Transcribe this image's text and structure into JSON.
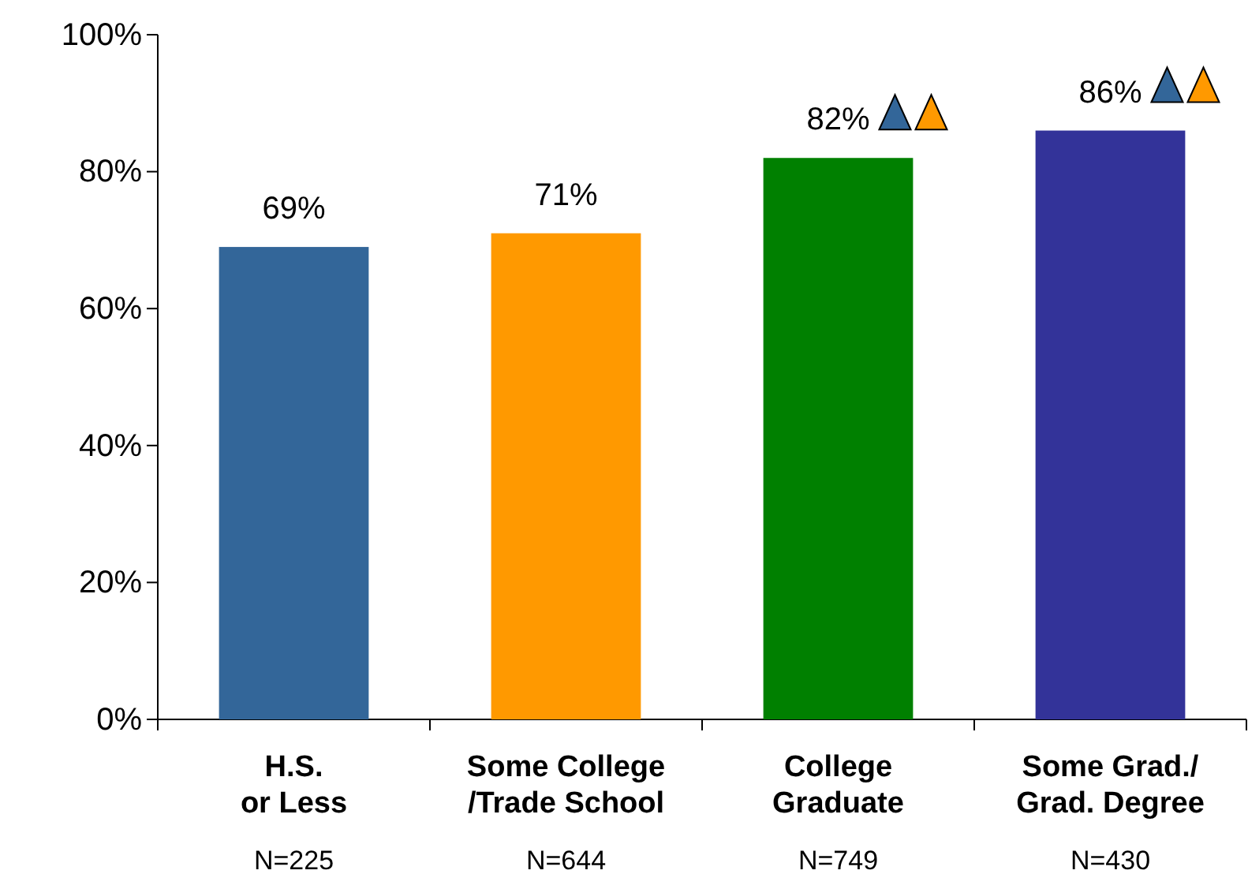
{
  "chart_data": {
    "type": "bar",
    "categories": [
      "H.S.\nor Less",
      "Some College\n/Trade School",
      "College\nGraduate",
      "Some Grad./\nGrad. Degree"
    ],
    "values": [
      69,
      71,
      82,
      86
    ],
    "colors": [
      "#336699",
      "#ff9900",
      "#008000",
      "#333399"
    ],
    "value_labels": [
      "69%",
      "71%",
      "82%",
      "86%"
    ],
    "ylim": [
      0,
      100
    ],
    "yticks": [
      {
        "value": 0,
        "label": "0%"
      },
      {
        "value": 20,
        "label": "20%"
      },
      {
        "value": 40,
        "label": "40%"
      },
      {
        "value": 60,
        "label": "60%"
      },
      {
        "value": 80,
        "label": "80%"
      },
      {
        "value": 100,
        "label": "100%"
      }
    ],
    "grid": false,
    "annotations": [
      "N=225",
      "N=644",
      "N=749",
      "N=430"
    ]
  }
}
